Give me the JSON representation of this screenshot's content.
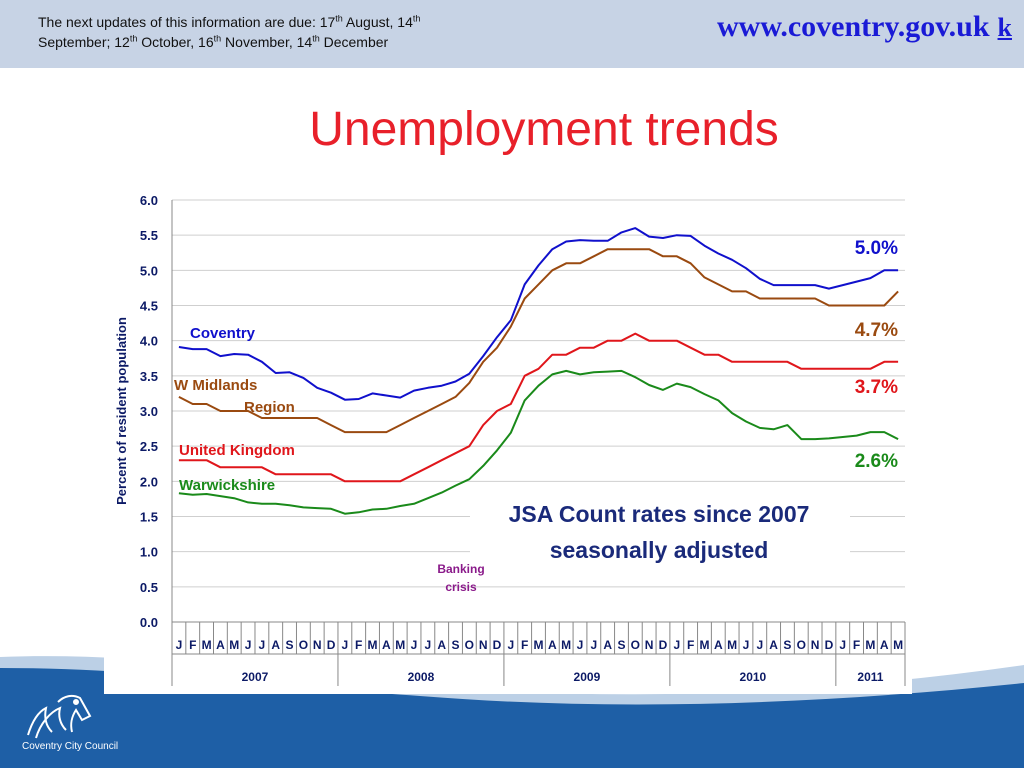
{
  "header": {
    "notice_line1": "The next updates of this information are due: 17",
    "notice_sup1": "th",
    "notice_mid1": " August, 14",
    "notice_sup2": "th",
    "notice_line2a": "September; 12",
    "notice_sup3": "th",
    "notice_mid2": " October, 16",
    "notice_sup4": "th",
    "notice_mid3": " November, 14",
    "notice_sup5": "th",
    "notice_end": " December",
    "site": "www.coventry.gov.uk",
    "site_k": "k"
  },
  "title": "Unemployment trends",
  "footer": {
    "council": "Coventry City Council"
  },
  "colors": {
    "coventry": "#1010cc",
    "w_midlands": "#9a4a10",
    "united_kingdom": "#e0161b",
    "warwickshire": "#1a8a1a",
    "banking": "#8a1a8a",
    "axis_text": "#0c1a66"
  },
  "chart_data": {
    "type": "line",
    "ylabel": "Percent of resident population",
    "ylim": [
      0,
      6
    ],
    "yticks": [
      "0.0",
      "0.5",
      "1.0",
      "1.5",
      "2.0",
      "2.5",
      "3.0",
      "3.5",
      "4.0",
      "4.5",
      "5.0",
      "5.5",
      "6.0"
    ],
    "x": [
      "J",
      "F",
      "M",
      "A",
      "M",
      "J",
      "J",
      "A",
      "S",
      "O",
      "N",
      "D",
      "J",
      "F",
      "M",
      "A",
      "M",
      "J",
      "J",
      "A",
      "S",
      "O",
      "N",
      "D",
      "J",
      "F",
      "M",
      "A",
      "M",
      "J",
      "J",
      "A",
      "S",
      "O",
      "N",
      "D",
      "J",
      "F",
      "M",
      "A",
      "M",
      "J",
      "J",
      "A",
      "S",
      "O",
      "N",
      "D",
      "J",
      "F",
      "M",
      "A",
      "M"
    ],
    "years": [
      {
        "label": "2007",
        "months": 12
      },
      {
        "label": "2008",
        "months": 12
      },
      {
        "label": "2009",
        "months": 12
      },
      {
        "label": "2010",
        "months": 12
      },
      {
        "label": "2011",
        "months": 5
      }
    ],
    "grid": true,
    "series": [
      {
        "name": "Coventry",
        "color_key": "coventry",
        "end_label": "5.0%",
        "values": [
          3.91,
          3.88,
          3.88,
          3.78,
          3.81,
          3.8,
          3.7,
          3.54,
          3.55,
          3.47,
          3.33,
          3.26,
          3.16,
          3.17,
          3.25,
          3.22,
          3.19,
          3.29,
          3.33,
          3.36,
          3.42,
          3.53,
          3.78,
          4.05,
          4.29,
          4.8,
          5.07,
          5.3,
          5.41,
          5.43,
          5.42,
          5.42,
          5.54,
          5.6,
          5.48,
          5.46,
          5.5,
          5.49,
          5.35,
          5.24,
          5.15,
          5.03,
          4.88,
          4.79,
          4.79,
          4.79,
          4.79,
          4.74,
          4.79,
          4.84,
          4.89,
          5.0,
          5.0
        ]
      },
      {
        "name": "W Midlands",
        "name2": "Region",
        "color_key": "w_midlands",
        "end_label": "4.7%",
        "values": [
          3.2,
          3.1,
          3.1,
          3.0,
          3.0,
          3.0,
          2.9,
          2.9,
          2.9,
          2.9,
          2.9,
          2.8,
          2.7,
          2.7,
          2.7,
          2.7,
          2.8,
          2.9,
          3.0,
          3.1,
          3.2,
          3.4,
          3.7,
          3.9,
          4.2,
          4.6,
          4.8,
          5.0,
          5.1,
          5.1,
          5.2,
          5.3,
          5.3,
          5.3,
          5.3,
          5.2,
          5.2,
          5.1,
          4.9,
          4.8,
          4.7,
          4.7,
          4.6,
          4.6,
          4.6,
          4.6,
          4.6,
          4.5,
          4.5,
          4.5,
          4.5,
          4.5,
          4.7
        ]
      },
      {
        "name": "United Kingdom",
        "color_key": "united_kingdom",
        "end_label": "3.7%",
        "values": [
          2.3,
          2.3,
          2.3,
          2.2,
          2.2,
          2.2,
          2.2,
          2.1,
          2.1,
          2.1,
          2.1,
          2.1,
          2.0,
          2.0,
          2.0,
          2.0,
          2.0,
          2.1,
          2.2,
          2.3,
          2.4,
          2.5,
          2.8,
          3.0,
          3.1,
          3.5,
          3.6,
          3.8,
          3.8,
          3.9,
          3.9,
          4.0,
          4.0,
          4.1,
          4.0,
          4.0,
          4.0,
          3.9,
          3.8,
          3.8,
          3.7,
          3.7,
          3.7,
          3.7,
          3.7,
          3.6,
          3.6,
          3.6,
          3.6,
          3.6,
          3.6,
          3.7,
          3.7
        ]
      },
      {
        "name": "Warwickshire",
        "color_key": "warwickshire",
        "end_label": "2.6%",
        "values": [
          1.83,
          1.81,
          1.82,
          1.79,
          1.76,
          1.7,
          1.68,
          1.68,
          1.66,
          1.63,
          1.62,
          1.61,
          1.54,
          1.56,
          1.6,
          1.61,
          1.65,
          1.68,
          1.76,
          1.84,
          1.94,
          2.03,
          2.22,
          2.44,
          2.69,
          3.15,
          3.36,
          3.52,
          3.57,
          3.52,
          3.55,
          3.56,
          3.57,
          3.48,
          3.37,
          3.3,
          3.39,
          3.34,
          3.24,
          3.15,
          2.97,
          2.85,
          2.76,
          2.74,
          2.8,
          2.6,
          2.6,
          2.61,
          2.63,
          2.65,
          2.7,
          2.7,
          2.6
        ]
      }
    ],
    "annotations": {
      "jsa_line1": "JSA Count rates since 2007",
      "jsa_line2": "seasonally adjusted",
      "banking_line1": "Banking",
      "banking_line2": "crisis"
    }
  }
}
